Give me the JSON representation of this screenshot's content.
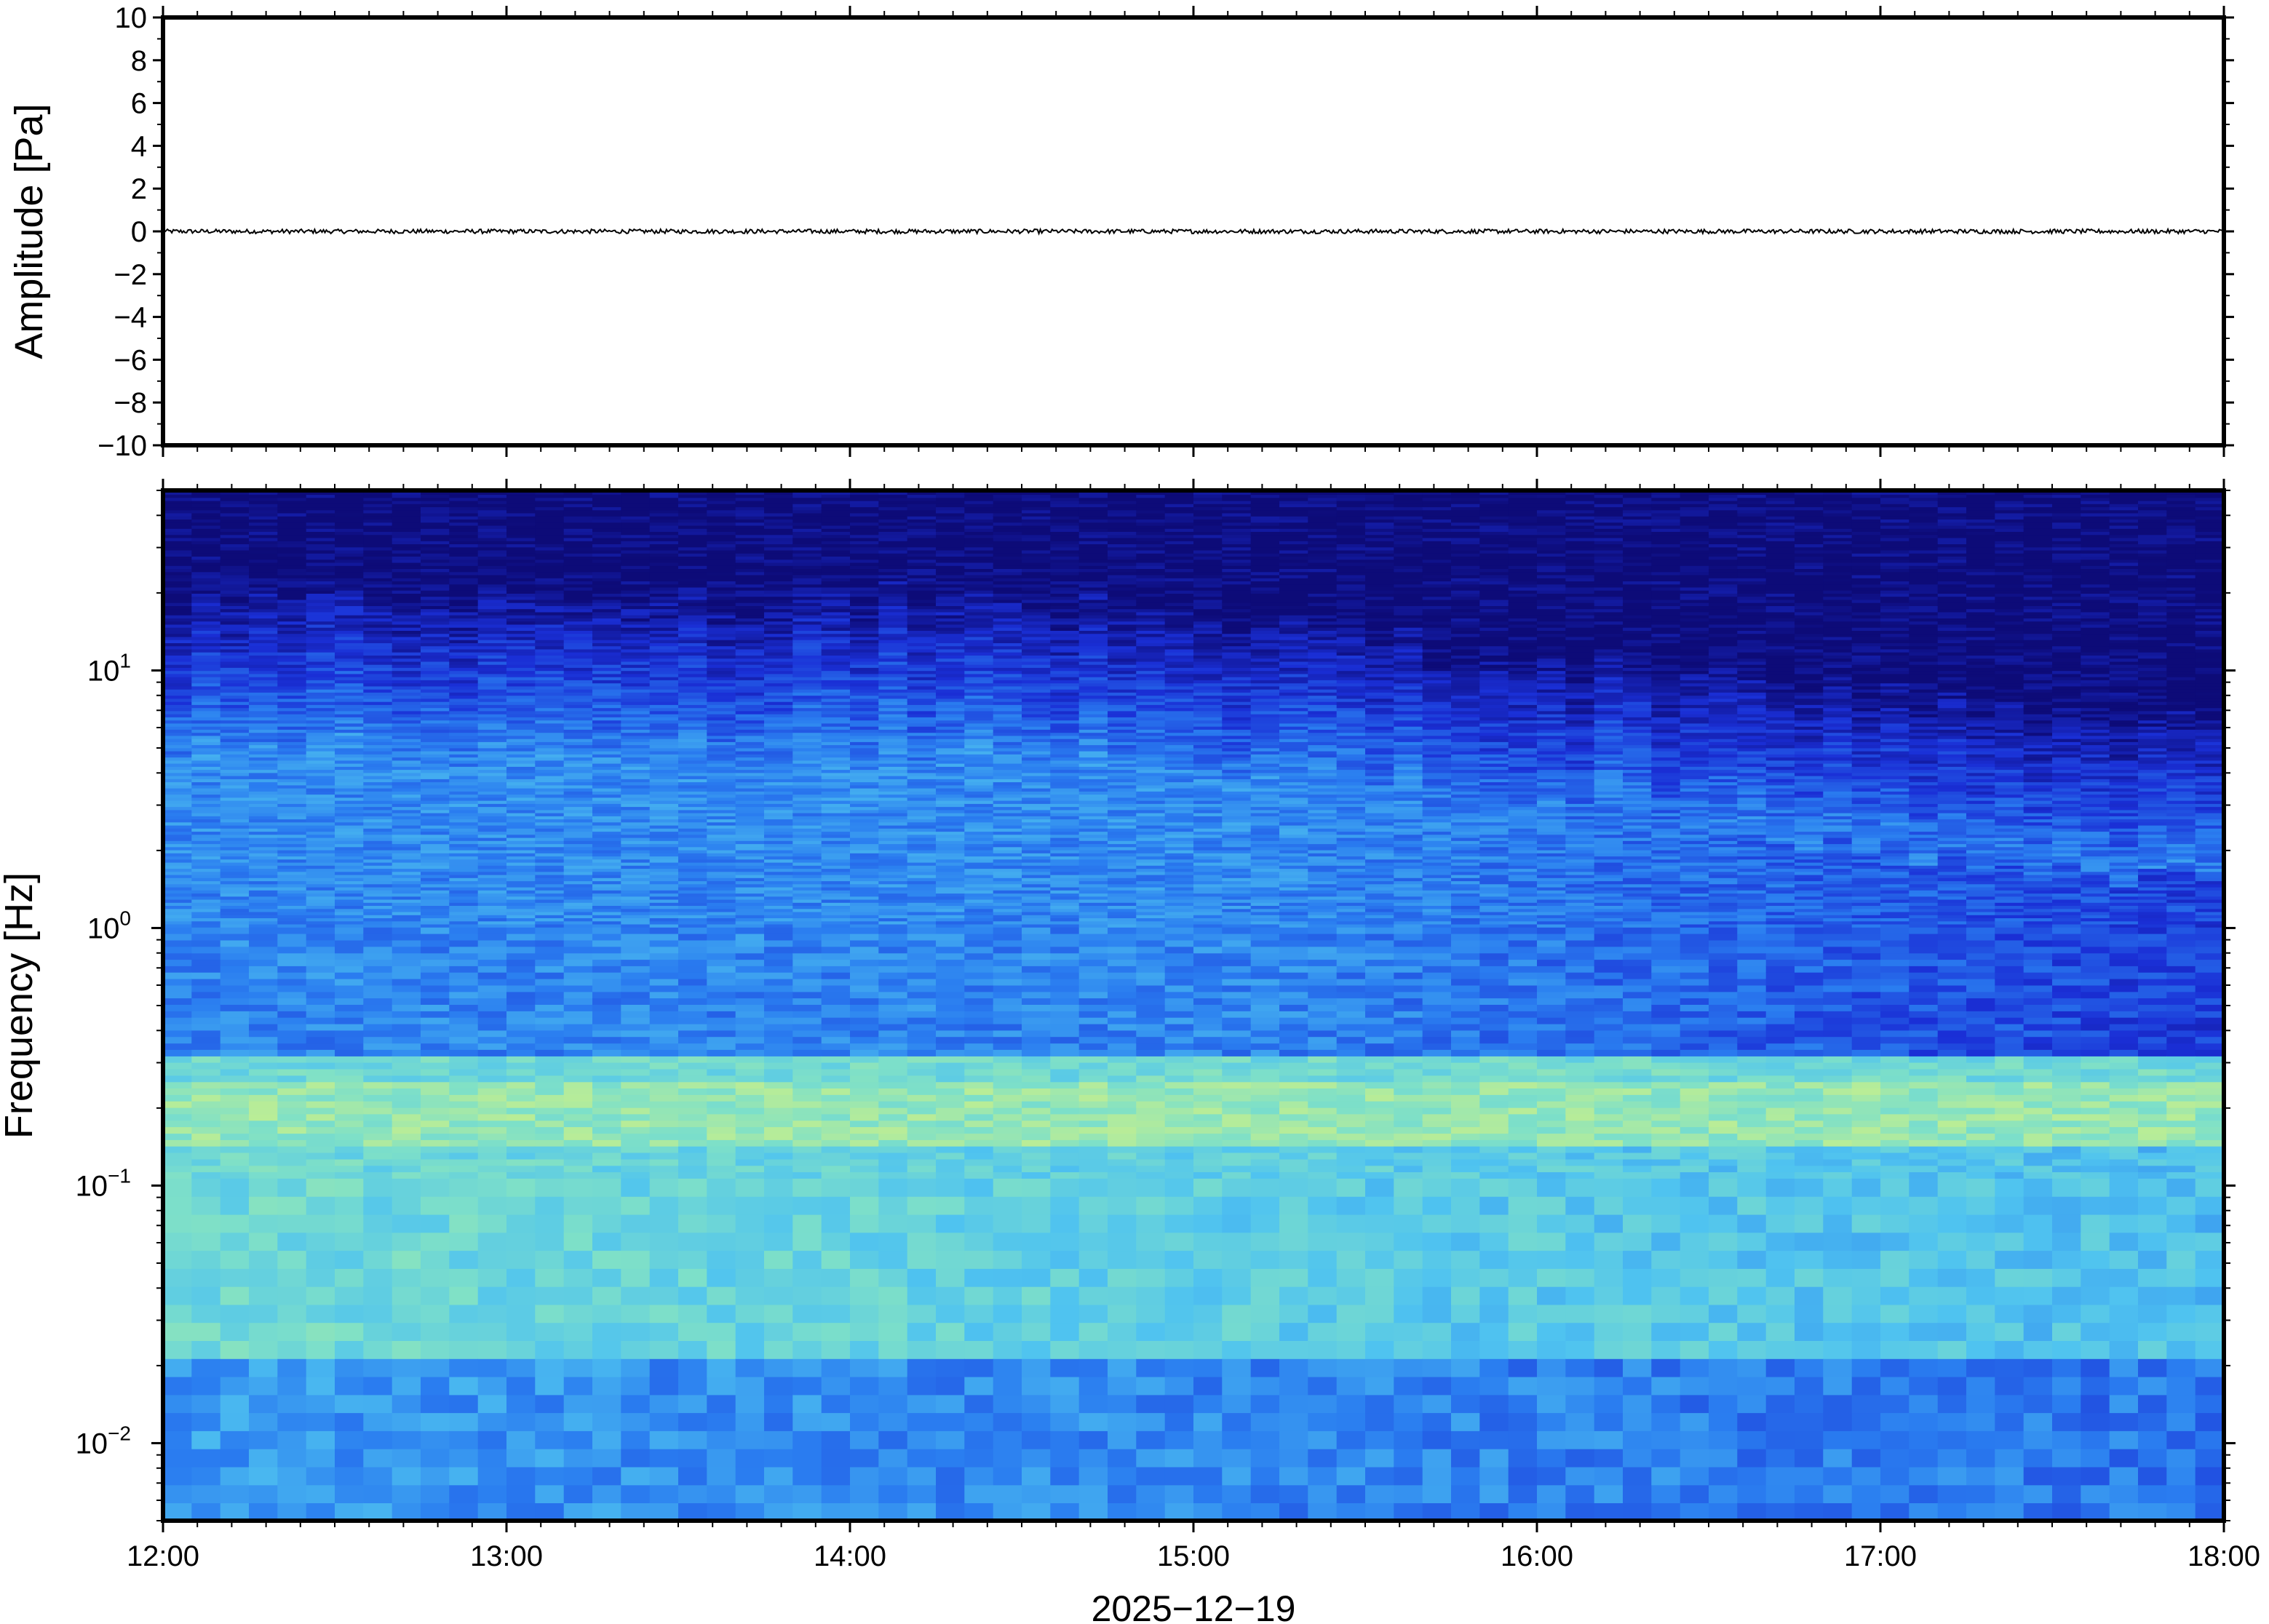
{
  "chart_data": [
    {
      "type": "line",
      "title": "",
      "xlabel": "",
      "ylabel": "Amplitude [Pa]",
      "ylim": [
        -10,
        10
      ],
      "yticks": [
        10,
        8,
        6,
        4,
        2,
        0,
        -2,
        -4,
        -6,
        -8,
        -10
      ],
      "ytick_labels": [
        "10",
        "8",
        "6",
        "4",
        "2",
        "0",
        "−2",
        "−4",
        "−6",
        "−8",
        "−10"
      ],
      "xlim": [
        "12:00",
        "18:00"
      ],
      "series": [
        {
          "values_range": [
            -0.1,
            0.1
          ],
          "color": "#000000"
        }
      ],
      "grid": false
    },
    {
      "type": "heatmap",
      "title": "",
      "xlabel": "2025−12−19",
      "ylabel": "Frequency [Hz]",
      "xticks": [
        "12:00",
        "13:00",
        "14:00",
        "15:00",
        "16:00",
        "17:00",
        "18:00"
      ],
      "xlim": [
        "12:00",
        "18:00"
      ],
      "y_scale": "log",
      "ylim": [
        0.005,
        50
      ],
      "yticks": [
        0.01,
        0.1,
        1,
        10
      ],
      "ytick_labels": [
        {
          "base": "10",
          "exp": "−2"
        },
        {
          "base": "10",
          "exp": "−1"
        },
        {
          "base": "10",
          "exp": "0"
        },
        {
          "base": "10",
          "exp": "1"
        }
      ],
      "colormap": [
        "#0d0b78",
        "#1a2fd6",
        "#2a7df0",
        "#4fc3f0",
        "#7ee0c8",
        "#c8f08a",
        "#f0f08a"
      ],
      "grid": false
    }
  ]
}
